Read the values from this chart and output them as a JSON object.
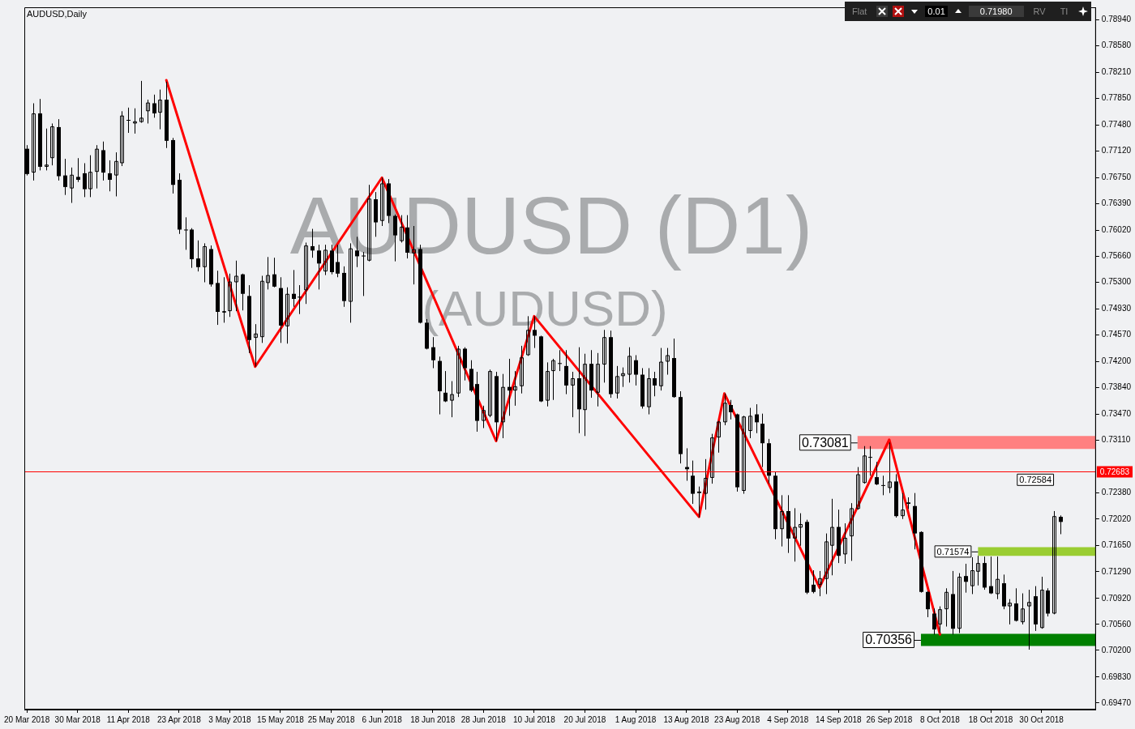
{
  "chart_data": {
    "type": "candlestick",
    "title": "AUDUSD,Daily",
    "categories": [
      "20 Mar 2018",
      null,
      null,
      null,
      null,
      null,
      null,
      null,
      "30 Mar 2018",
      null,
      null,
      null,
      null,
      null,
      null,
      null,
      "11 Apr 2018",
      null,
      null,
      null,
      null,
      null,
      null,
      null,
      "23 Apr 2018",
      null,
      null,
      null,
      null,
      null,
      null,
      null,
      "3 May 2018",
      null,
      null,
      null,
      null,
      null,
      null,
      null,
      "15 May 2018",
      null,
      null,
      null,
      null,
      null,
      null,
      null,
      "25 May 2018",
      null,
      null,
      null,
      null,
      null,
      null,
      null,
      "6 Jun 2018",
      null,
      null,
      null,
      null,
      null,
      null,
      null,
      "18 Jun 2018",
      null,
      null,
      null,
      null,
      null,
      null,
      null,
      "28 Jun 2018",
      null,
      null,
      null,
      null,
      null,
      null,
      null,
      "10 Jul 2018",
      null,
      null,
      null,
      null,
      null,
      null,
      null,
      "20 Jul 2018",
      null,
      null,
      null,
      null,
      null,
      null,
      null,
      "1 Aug 2018",
      null,
      null,
      null,
      null,
      null,
      null,
      null,
      "13 Aug 2018",
      null,
      null,
      null,
      null,
      null,
      null,
      null,
      "23 Aug 2018",
      null,
      null,
      null,
      null,
      null,
      null,
      null,
      "4 Sep 2018",
      null,
      null,
      null,
      null,
      null,
      null,
      null,
      "14 Sep 2018",
      null,
      null,
      null,
      null,
      null,
      null,
      null,
      "26 Sep 2018",
      null,
      null,
      null,
      null,
      null,
      null,
      null,
      "8 Oct 2018",
      null,
      null,
      null,
      null,
      null,
      null,
      null,
      "18 Oct 2018",
      null,
      null,
      null,
      null,
      null,
      null,
      null,
      "30 Oct 2018",
      null,
      null,
      null
    ],
    "color": "#000000",
    "ohlc": [
      [
        0.7715,
        0.772,
        0.7678,
        0.768
      ],
      [
        0.7682,
        0.7778,
        0.7671,
        0.7764
      ],
      [
        0.7764,
        0.7784,
        0.7685,
        0.769
      ],
      [
        0.769,
        0.7743,
        0.7685,
        0.7693
      ],
      [
        0.7702,
        0.775,
        0.7692,
        0.7746
      ],
      [
        0.7745,
        0.7756,
        0.7671,
        0.7677
      ],
      [
        0.7678,
        0.7701,
        0.7651,
        0.7662
      ],
      [
        0.766,
        0.7689,
        0.764,
        0.7679
      ],
      [
        0.7676,
        0.7702,
        0.7669,
        0.7672
      ],
      [
        0.7681,
        0.7695,
        0.7648,
        0.7659
      ],
      [
        0.7659,
        0.7706,
        0.7648,
        0.7683
      ],
      [
        0.7683,
        0.772,
        0.766,
        0.7715
      ],
      [
        0.7713,
        0.7725,
        0.7671,
        0.7682
      ],
      [
        0.7681,
        0.7699,
        0.7656,
        0.7672
      ],
      [
        0.7678,
        0.771,
        0.7649,
        0.7698
      ],
      [
        0.7695,
        0.7767,
        0.7691,
        0.7761
      ],
      [
        0.7755,
        0.7772,
        0.7737,
        0.7754
      ],
      [
        0.775,
        0.7771,
        0.7736,
        0.7753
      ],
      [
        0.7752,
        0.7809,
        0.7751,
        0.7758
      ],
      [
        0.7767,
        0.7783,
        0.775,
        0.7779
      ],
      [
        0.7778,
        0.779,
        0.7758,
        0.7764
      ],
      [
        0.7765,
        0.7797,
        0.7742,
        0.7783
      ],
      [
        0.7783,
        0.7808,
        0.7716,
        0.7726
      ],
      [
        0.7727,
        0.773,
        0.7653,
        0.7665
      ],
      [
        0.7672,
        0.7681,
        0.7597,
        0.7603
      ],
      [
        0.7603,
        0.762,
        0.7575,
        0.7602
      ],
      [
        0.7603,
        0.7605,
        0.755,
        0.7562
      ],
      [
        0.7563,
        0.7588,
        0.7545,
        0.7551
      ],
      [
        0.7551,
        0.7584,
        0.753,
        0.758
      ],
      [
        0.7576,
        0.7581,
        0.7524,
        0.7527
      ],
      [
        0.7529,
        0.7546,
        0.7471,
        0.7489
      ],
      [
        0.7488,
        0.7537,
        0.7474,
        0.749
      ],
      [
        0.749,
        0.7542,
        0.7482,
        0.7531
      ],
      [
        0.753,
        0.756,
        0.749,
        0.7539
      ],
      [
        0.7541,
        0.7542,
        0.7491,
        0.7514
      ],
      [
        0.7511,
        0.7526,
        0.7432,
        0.745
      ],
      [
        0.7453,
        0.7472,
        0.7413,
        0.7459
      ],
      [
        0.7454,
        0.7539,
        0.7446,
        0.7532
      ],
      [
        0.7529,
        0.7565,
        0.752,
        0.754
      ],
      [
        0.7541,
        0.7564,
        0.7523,
        0.7524
      ],
      [
        0.7522,
        0.7537,
        0.7446,
        0.747
      ],
      [
        0.7469,
        0.7523,
        0.7445,
        0.7514
      ],
      [
        0.7514,
        0.7547,
        0.7496,
        0.7507
      ],
      [
        0.751,
        0.7526,
        0.7486,
        0.7509
      ],
      [
        0.7519,
        0.7585,
        0.75,
        0.7581
      ],
      [
        0.758,
        0.7604,
        0.7564,
        0.7574
      ],
      [
        0.7574,
        0.7582,
        0.752,
        0.7556
      ],
      [
        0.7545,
        0.7582,
        0.754,
        0.7575
      ],
      [
        0.7574,
        0.7582,
        0.7541,
        0.7544
      ],
      [
        0.7558,
        0.7582,
        0.7537,
        0.7542
      ],
      [
        0.7543,
        0.7552,
        0.7496,
        0.7504
      ],
      [
        0.7503,
        0.7584,
        0.7474,
        0.7577
      ],
      [
        0.7574,
        0.7593,
        0.7551,
        0.7566
      ],
      [
        0.7567,
        0.7572,
        0.7511,
        0.7566
      ],
      [
        0.756,
        0.7665,
        0.7559,
        0.7646
      ],
      [
        0.7645,
        0.7655,
        0.7593,
        0.7613
      ],
      [
        0.7615,
        0.7675,
        0.7608,
        0.7667
      ],
      [
        0.7667,
        0.7673,
        0.7612,
        0.7622
      ],
      [
        0.7622,
        0.7624,
        0.7559,
        0.7595
      ],
      [
        0.7587,
        0.7623,
        0.7585,
        0.7607
      ],
      [
        0.7606,
        0.7623,
        0.7563,
        0.7571
      ],
      [
        0.757,
        0.7608,
        0.7527,
        0.7576
      ],
      [
        0.7576,
        0.7582,
        0.7473,
        0.7474
      ],
      [
        0.7474,
        0.7479,
        0.7437,
        0.7438
      ],
      [
        0.744,
        0.7454,
        0.7411,
        0.7422
      ],
      [
        0.7421,
        0.7427,
        0.7347,
        0.7379
      ],
      [
        0.7377,
        0.7407,
        0.7364,
        0.7365
      ],
      [
        0.7366,
        0.7393,
        0.7343,
        0.7375
      ],
      [
        0.7376,
        0.7442,
        0.7371,
        0.7438
      ],
      [
        0.7438,
        0.744,
        0.7394,
        0.7411
      ],
      [
        0.741,
        0.7422,
        0.7378,
        0.738
      ],
      [
        0.7389,
        0.7406,
        0.7323,
        0.7338
      ],
      [
        0.7338,
        0.7359,
        0.7328,
        0.7353
      ],
      [
        0.7345,
        0.7409,
        0.7343,
        0.7407
      ],
      [
        0.74,
        0.7406,
        0.731,
        0.7336
      ],
      [
        0.7336,
        0.7403,
        0.7314,
        0.7385
      ],
      [
        0.7385,
        0.7424,
        0.7345,
        0.738
      ],
      [
        0.738,
        0.7407,
        0.7359,
        0.7386
      ],
      [
        0.7386,
        0.7442,
        0.7376,
        0.7426
      ],
      [
        0.7429,
        0.7483,
        0.7428,
        0.7464
      ],
      [
        0.7464,
        0.7483,
        0.7439,
        0.7456
      ],
      [
        0.7455,
        0.7456,
        0.7364,
        0.7365
      ],
      [
        0.7366,
        0.7419,
        0.7358,
        0.7407
      ],
      [
        0.7407,
        0.7424,
        0.7367,
        0.7422
      ],
      [
        0.7418,
        0.7436,
        0.7407,
        0.7417
      ],
      [
        0.7414,
        0.7436,
        0.7375,
        0.7387
      ],
      [
        0.7387,
        0.7406,
        0.7343,
        0.7397
      ],
      [
        0.7397,
        0.744,
        0.7321,
        0.7354
      ],
      [
        0.7353,
        0.7431,
        0.7317,
        0.7417
      ],
      [
        0.7417,
        0.7436,
        0.737,
        0.738
      ],
      [
        0.7377,
        0.7432,
        0.7358,
        0.7417
      ],
      [
        0.7416,
        0.7464,
        0.7391,
        0.7454
      ],
      [
        0.7454,
        0.7463,
        0.737,
        0.7375
      ],
      [
        0.7376,
        0.7414,
        0.7369,
        0.74
      ],
      [
        0.74,
        0.7412,
        0.7385,
        0.7404
      ],
      [
        0.7402,
        0.744,
        0.7391,
        0.7428
      ],
      [
        0.7422,
        0.7429,
        0.7387,
        0.7402
      ],
      [
        0.7402,
        0.7411,
        0.7355,
        0.7358
      ],
      [
        0.7357,
        0.7411,
        0.7347,
        0.7397
      ],
      [
        0.7397,
        0.7406,
        0.7372,
        0.7387
      ],
      [
        0.7386,
        0.7439,
        0.738,
        0.742
      ],
      [
        0.742,
        0.7439,
        0.7402,
        0.7429
      ],
      [
        0.7425,
        0.7452,
        0.737,
        0.7371
      ],
      [
        0.7371,
        0.7379,
        0.7279,
        0.7292
      ],
      [
        0.7274,
        0.73,
        0.7255,
        0.7271
      ],
      [
        0.7262,
        0.7283,
        0.7223,
        0.7237
      ],
      [
        0.724,
        0.7247,
        0.7204,
        0.7238
      ],
      [
        0.7237,
        0.7285,
        0.7215,
        0.7259
      ],
      [
        0.7259,
        0.732,
        0.7251,
        0.7315
      ],
      [
        0.7315,
        0.7338,
        0.7294,
        0.7337
      ],
      [
        0.7336,
        0.7376,
        0.7332,
        0.7363
      ],
      [
        0.736,
        0.7367,
        0.734,
        0.735
      ],
      [
        0.7347,
        0.7348,
        0.724,
        0.7246
      ],
      [
        0.7241,
        0.7345,
        0.7237,
        0.7344
      ],
      [
        0.7324,
        0.7356,
        0.7314,
        0.7345
      ],
      [
        0.7347,
        0.7361,
        0.7321,
        0.7336
      ],
      [
        0.7334,
        0.7348,
        0.7274,
        0.7307
      ],
      [
        0.7307,
        0.7313,
        0.7251,
        0.7262
      ],
      [
        0.7262,
        0.7267,
        0.7174,
        0.7188
      ],
      [
        0.7188,
        0.7235,
        0.7164,
        0.7213
      ],
      [
        0.7213,
        0.7235,
        0.7155,
        0.7175
      ],
      [
        0.7175,
        0.7217,
        0.7143,
        0.7191
      ],
      [
        0.719,
        0.721,
        0.7165,
        0.7195
      ],
      [
        0.7198,
        0.7201,
        0.7098,
        0.71
      ],
      [
        0.7111,
        0.7131,
        0.7099,
        0.7101
      ],
      [
        0.7111,
        0.713,
        0.7095,
        0.712
      ],
      [
        0.7119,
        0.7182,
        0.7098,
        0.7171
      ],
      [
        0.7165,
        0.723,
        0.7124,
        0.7191
      ],
      [
        0.7191,
        0.7215,
        0.7141,
        0.7151
      ],
      [
        0.7153,
        0.7196,
        0.714,
        0.7176
      ],
      [
        0.7178,
        0.7224,
        0.7144,
        0.7217
      ],
      [
        0.7216,
        0.7274,
        0.7215,
        0.7264
      ],
      [
        0.7252,
        0.7303,
        0.7251,
        0.729
      ],
      [
        0.7288,
        0.7303,
        0.7262,
        0.7287
      ],
      [
        0.726,
        0.7281,
        0.7249,
        0.725
      ],
      [
        0.7249,
        0.7262,
        0.7235,
        0.7248
      ],
      [
        0.7245,
        0.7308,
        0.7238,
        0.7254
      ],
      [
        0.7254,
        0.7264,
        0.7204,
        0.7206
      ],
      [
        0.7206,
        0.7238,
        0.7202,
        0.7215
      ],
      [
        0.7225,
        0.7232,
        0.7216,
        0.7223
      ],
      [
        0.722,
        0.7238,
        0.716,
        0.7182
      ],
      [
        0.7184,
        0.7185,
        0.71,
        0.7101
      ],
      [
        0.7101,
        0.7102,
        0.7066,
        0.7077
      ],
      [
        0.7071,
        0.7078,
        0.7042,
        0.7049
      ],
      [
        0.7056,
        0.7081,
        0.7044,
        0.7077
      ],
      [
        0.7077,
        0.7106,
        0.7053,
        0.7101
      ],
      [
        0.7098,
        0.713,
        0.7042,
        0.705
      ],
      [
        0.705,
        0.7127,
        0.7044,
        0.7122
      ],
      [
        0.7123,
        0.714,
        0.71,
        0.7115
      ],
      [
        0.7109,
        0.7149,
        0.7098,
        0.7131
      ],
      [
        0.7129,
        0.7151,
        0.711,
        0.7141
      ],
      [
        0.7141,
        0.715,
        0.7104,
        0.7107
      ],
      [
        0.7109,
        0.715,
        0.7098,
        0.7099
      ],
      [
        0.7098,
        0.715,
        0.7091,
        0.7119
      ],
      [
        0.7113,
        0.7125,
        0.7077,
        0.7081
      ],
      [
        0.7081,
        0.7091,
        0.7056,
        0.7086
      ],
      [
        0.7085,
        0.7106,
        0.706,
        0.7061
      ],
      [
        0.7059,
        0.7099,
        0.7056,
        0.7078
      ],
      [
        0.7081,
        0.7104,
        0.7021,
        0.7087
      ],
      [
        0.7095,
        0.7109,
        0.7047,
        0.7056
      ],
      [
        0.7051,
        0.7122,
        0.705,
        0.7104
      ],
      [
        0.7103,
        0.7106,
        0.7067,
        0.7071
      ],
      [
        0.7071,
        0.7213,
        0.707,
        0.7206
      ],
      [
        0.7205,
        0.7207,
        0.7181,
        0.7198
      ]
    ],
    "series": [
      {
        "type": "line",
        "color": "#ff0000",
        "values": [
          null,
          null,
          null,
          null,
          null,
          null,
          null,
          null,
          null,
          null,
          null,
          null,
          null,
          null,
          null,
          null,
          null,
          null,
          null,
          null,
          null,
          null,
          0.781,
          null,
          null,
          null,
          null,
          null,
          null,
          null,
          null,
          null,
          null,
          null,
          null,
          null,
          0.7413,
          null,
          null,
          null,
          null,
          null,
          null,
          null,
          null,
          null,
          null,
          null,
          null,
          null,
          null,
          null,
          null,
          null,
          null,
          null,
          0.7675,
          null,
          null,
          null,
          null,
          null,
          null,
          null,
          null,
          null,
          null,
          null,
          null,
          null,
          null,
          null,
          null,
          null,
          0.731,
          null,
          null,
          null,
          null,
          null,
          0.7483,
          null,
          null,
          null,
          null,
          null,
          null,
          null,
          null,
          null,
          null,
          null,
          null,
          null,
          null,
          null,
          null,
          null,
          null,
          null,
          null,
          null,
          null,
          null,
          null,
          null,
          0.7205,
          null,
          null,
          null,
          0.7376,
          null,
          null,
          null,
          null,
          null,
          null,
          null,
          null,
          null,
          null,
          null,
          null,
          null,
          null,
          0.7107,
          null,
          null,
          null,
          null,
          null,
          null,
          null,
          null,
          null,
          null,
          0.7312,
          null,
          null,
          null,
          null,
          null,
          null,
          null,
          0.7042,
          null,
          null,
          null,
          null,
          null,
          null,
          null,
          null,
          null,
          null,
          null,
          null,
          null,
          null,
          null,
          null,
          null,
          null,
          null
        ]
      }
    ],
    "marker": "none",
    "ylim": [
      0.6938,
      0.7911
    ],
    "yticks": [
      {
        "value": 0.7894,
        "label": "0.78940"
      },
      {
        "value": 0.7858,
        "label": "0.78580"
      },
      {
        "value": 0.7821,
        "label": "0.78210"
      },
      {
        "value": 0.7785,
        "label": "0.77850"
      },
      {
        "value": 0.7748,
        "label": "0.77480"
      },
      {
        "value": 0.7712,
        "label": "0.77120"
      },
      {
        "value": 0.7675,
        "label": "0.76750"
      },
      {
        "value": 0.7639,
        "label": "0.76390"
      },
      {
        "value": 0.7602,
        "label": "0.76020"
      },
      {
        "value": 0.7566,
        "label": "0.75660"
      },
      {
        "value": 0.753,
        "label": "0.75300"
      },
      {
        "value": 0.7493,
        "label": "0.74930"
      },
      {
        "value": 0.7457,
        "label": "0.74570"
      },
      {
        "value": 0.742,
        "label": "0.74200"
      },
      {
        "value": 0.7384,
        "label": "0.73840"
      },
      {
        "value": 0.7347,
        "label": "0.73470"
      },
      {
        "value": 0.7311,
        "label": "0.73110"
      },
      {
        "value": 0.7238,
        "label": "0.72380"
      },
      {
        "value": 0.7202,
        "label": "0.72020"
      },
      {
        "value": 0.7165,
        "label": "0.71650"
      },
      {
        "value": 0.7129,
        "label": "0.71290"
      },
      {
        "value": 0.7092,
        "label": "0.70920"
      },
      {
        "value": 0.7056,
        "label": "0.70560"
      },
      {
        "value": 0.702,
        "label": "0.70200"
      },
      {
        "value": 0.6983,
        "label": "0.69830"
      },
      {
        "value": 0.6947,
        "label": "0.69470"
      }
    ],
    "ref_lines": [
      {
        "axis": "y",
        "value": 0.72683,
        "label": "0.72683",
        "color": "#ff0000"
      }
    ],
    "bands": [
      {
        "axis": "y",
        "from": 0.7299,
        "to": 0.7317,
        "label": "0.73081",
        "color": "#ff8080"
      },
      {
        "axis": "y",
        "from": 0.7151,
        "to": 0.7163,
        "label": "0.71574",
        "color": "#9acd32"
      },
      {
        "axis": "y",
        "from": 0.7026,
        "to": 0.7043,
        "label": "0.70356",
        "color": "#008000"
      }
    ],
    "annotations": [
      "AUDUSD (D1)",
      "(AUDUSD)",
      "Flat",
      "0.01",
      "0.71980",
      "RV",
      "TI",
      "0.72584"
    ]
  }
}
